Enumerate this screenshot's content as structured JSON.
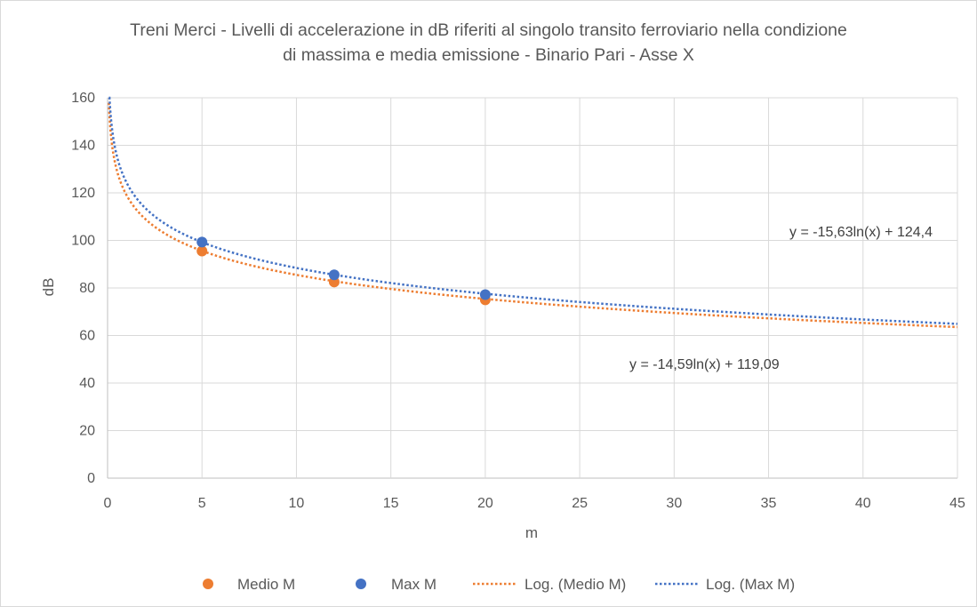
{
  "chart_data": {
    "type": "scatter",
    "title_line1": "Treni Merci - Livelli di accelerazione in dB riferiti al singolo transito ferroviario nella condizione",
    "title_line2": "di massima e media emissione - Binario Pari - Asse X",
    "xlabel": "m",
    "ylabel": "dB",
    "xlim": [
      0,
      45
    ],
    "ylim": [
      0,
      160
    ],
    "x_ticks": [
      0,
      5,
      10,
      15,
      20,
      25,
      30,
      35,
      40,
      45
    ],
    "y_ticks": [
      0,
      20,
      40,
      60,
      80,
      100,
      120,
      140,
      160
    ],
    "grid": "vertical and horizontal",
    "legend_position": "bottom",
    "series": [
      {
        "name": "Medio M",
        "color": "#ED7D31",
        "points": [
          [
            5,
            95.5
          ],
          [
            12,
            82.5
          ],
          [
            20,
            75.0
          ]
        ]
      },
      {
        "name": "Max M",
        "color": "#4472C4",
        "points": [
          [
            5,
            99.3
          ],
          [
            12,
            85.5
          ],
          [
            20,
            77.2
          ]
        ]
      }
    ],
    "trendlines": [
      {
        "name": "Log. (Medio M)",
        "color": "#ED7D31",
        "a": -14.59,
        "b": 119.09,
        "equation": "y = -14,59ln(x) + 119,09"
      },
      {
        "name": "Log. (Max M)",
        "color": "#4472C4",
        "a": -15.63,
        "b": 124.4,
        "equation": "y = -15,63ln(x) + 124,4"
      }
    ]
  }
}
